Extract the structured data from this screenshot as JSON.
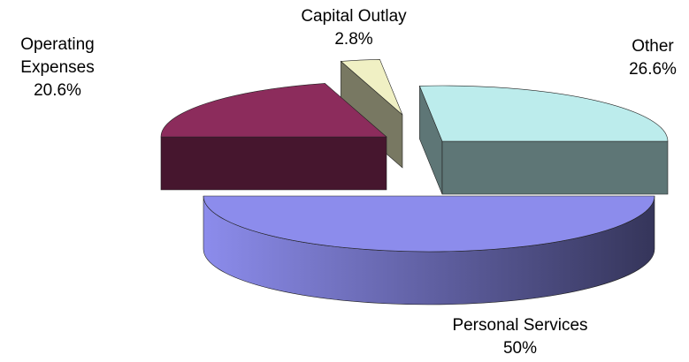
{
  "chart_data": {
    "type": "pie3d",
    "categories": [
      "Other",
      "Capital Outlay",
      "Operating Expenses",
      "Personal Services"
    ],
    "values": [
      26.6,
      2.8,
      20.6,
      50
    ],
    "value_labels": [
      "26.6%",
      "2.8%",
      "20.6%",
      "50%"
    ],
    "colors": [
      "#bcecec",
      "#f0f0c4",
      "#8c2c5c",
      "#8c8cec"
    ]
  }
}
